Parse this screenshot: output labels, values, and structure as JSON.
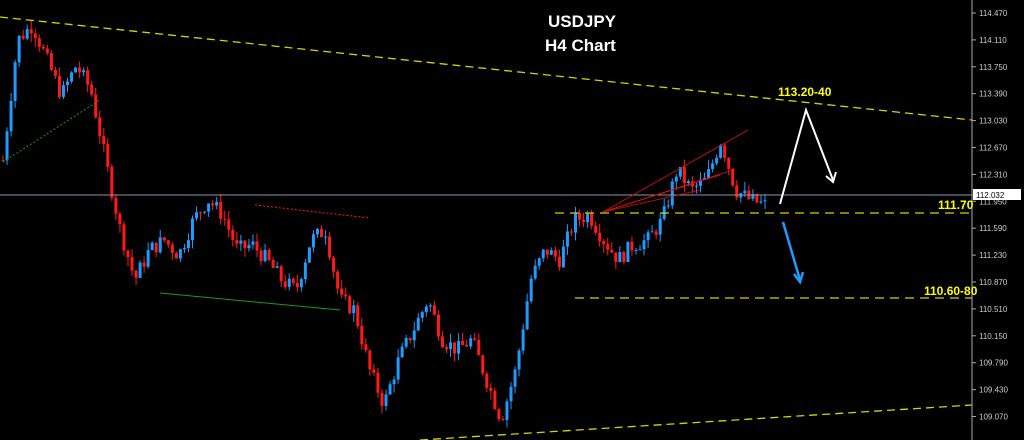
{
  "chart_data": {
    "type": "candlestick",
    "title": "USDJPY",
    "subtitle": "H4 Chart",
    "symbol": "USDJPY",
    "timeframe": "H4",
    "y_ticks": [
      "114.470",
      "114.110",
      "113.750",
      "113.390",
      "113.030",
      "112.670",
      "112.310",
      "111.950",
      "111.590",
      "111.230",
      "110.870",
      "110.510",
      "110.150",
      "109.790",
      "109.430",
      "109.070"
    ],
    "ylim": [
      108.9,
      114.6
    ],
    "current_price": "112.032",
    "close_path": [
      112.5,
      114.11,
      114.31,
      113.84,
      113.37,
      113.77,
      113.44,
      112.5,
      111.57,
      110.9,
      111.3,
      111.43,
      111.23,
      111.7,
      111.97,
      111.77,
      111.3,
      111.37,
      111.17,
      110.9,
      110.76,
      111.43,
      111.57,
      110.63,
      110.5,
      109.7,
      109.23,
      109.83,
      110.23,
      110.63,
      110.1,
      109.96,
      110.1,
      109.56,
      109.03,
      109.7,
      110.9,
      111.3,
      111.17,
      111.7,
      111.77,
      111.43,
      111.17,
      111.37,
      111.43,
      111.7,
      112.37,
      112.1,
      112.24,
      112.77,
      112.1,
      111.97,
      111.9
    ],
    "annotations": {
      "resistance_label": "113.20-40",
      "support1_label": "111.70",
      "support2_label": "110.60-80",
      "support1_level": 111.7,
      "support2_level": 110.7
    },
    "colors": {
      "bull": "#1e9bff",
      "bear": "#ff1a1a",
      "trend": "#d4d400",
      "background": "#000000",
      "price_line": "#8a94a8"
    },
    "grid": false
  }
}
